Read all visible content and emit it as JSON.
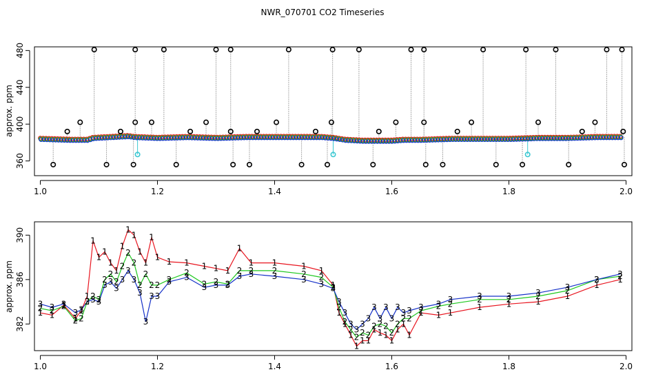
{
  "figure": {
    "title": "NWR_070701  CO2 Timeseries"
  },
  "colors": {
    "series_1": "#e8141e",
    "series_2": "#1ec81e",
    "series_3": "#1430c8",
    "spike": "#000000",
    "flag": "#3cc8d2",
    "connector": "#aaaaaa"
  },
  "chart_data": [
    {
      "type": "scatter",
      "panel": "top",
      "xlabel": "",
      "ylabel": "approx. ppm",
      "xlim": [
        0.99,
        2.01
      ],
      "ylim": [
        344,
        484
      ],
      "x_ticks": [
        1.0,
        1.2,
        1.4,
        1.6,
        1.8,
        2.0
      ],
      "x_tick_labels": [
        "1.0",
        "1.2",
        "1.4",
        "1.6",
        "1.8",
        "2.0"
      ],
      "y_ticks": [
        360,
        400,
        440,
        480
      ],
      "y_tick_labels": [
        "360",
        "400",
        "440",
        "480"
      ],
      "baseline": {
        "x": [
          1.0,
          1.05,
          1.08,
          1.09,
          1.12,
          1.15,
          1.16,
          1.2,
          1.25,
          1.3,
          1.35,
          1.4,
          1.45,
          1.48,
          1.5,
          1.52,
          1.55,
          1.58,
          1.6,
          1.62,
          1.65,
          1.7,
          1.75,
          1.8,
          1.85,
          1.9,
          1.95,
          1.99
        ],
        "values": [
          384,
          383,
          383,
          385,
          386,
          387,
          386,
          385,
          386,
          385,
          386,
          386,
          386,
          386,
          385,
          383,
          382,
          382,
          382,
          383,
          383,
          384,
          384,
          384,
          385,
          385,
          386,
          386
        ]
      },
      "spikes_high": {
        "x": [
          1.092,
          1.162,
          1.211,
          1.3,
          1.325,
          1.424,
          1.499,
          1.544,
          1.633,
          1.655,
          1.756,
          1.829,
          1.88,
          1.967,
          1.993
        ],
        "values": [
          481,
          481,
          481,
          481,
          481,
          481,
          481,
          481,
          481,
          481,
          481,
          481,
          481,
          481,
          481
        ]
      },
      "spikes_mid": {
        "x": [
          1.046,
          1.068,
          1.137,
          1.162,
          1.19,
          1.256,
          1.283,
          1.325,
          1.37,
          1.403,
          1.47,
          1.497,
          1.578,
          1.607,
          1.655,
          1.712,
          1.736,
          1.85,
          1.925,
          1.947,
          1.995
        ],
        "values": [
          392,
          402,
          392,
          402,
          402,
          392,
          402,
          392,
          392,
          402,
          392,
          402,
          392,
          402,
          402,
          392,
          402,
          402,
          392,
          402,
          392
        ]
      },
      "spikes_low": {
        "x": [
          1.022,
          1.113,
          1.159,
          1.232,
          1.329,
          1.357,
          1.446,
          1.49,
          1.568,
          1.658,
          1.687,
          1.778,
          1.823,
          1.902,
          1.997
        ],
        "values": [
          356,
          356,
          356,
          356,
          356,
          356,
          356,
          356,
          356,
          356,
          356,
          356,
          356,
          356,
          356
        ]
      },
      "flagged": {
        "x": [
          1.166,
          1.5,
          1.832
        ],
        "values": [
          367,
          367,
          367
        ]
      }
    },
    {
      "type": "line",
      "panel": "bottom",
      "xlabel": "",
      "ylabel": "approx. ppm",
      "xlim": [
        0.99,
        2.01
      ],
      "ylim": [
        379.6,
        391.2
      ],
      "x_ticks": [
        1.0,
        1.2,
        1.4,
        1.6,
        1.8,
        2.0
      ],
      "x_tick_labels": [
        "1.0",
        "1.2",
        "1.4",
        "1.6",
        "1.8",
        "2.0"
      ],
      "y_ticks": [
        382,
        386,
        390
      ],
      "y_tick_labels": [
        "382",
        "386",
        "390"
      ],
      "series": [
        {
          "marker": "1",
          "x": [
            1.0,
            1.02,
            1.04,
            1.06,
            1.07,
            1.08,
            1.09,
            1.1,
            1.11,
            1.12,
            1.13,
            1.14,
            1.15,
            1.16,
            1.17,
            1.18,
            1.19,
            1.2,
            1.22,
            1.25,
            1.28,
            1.3,
            1.32,
            1.34,
            1.36,
            1.4,
            1.45,
            1.48,
            1.5,
            1.51,
            1.52,
            1.53,
            1.54,
            1.55,
            1.56,
            1.57,
            1.58,
            1.59,
            1.6,
            1.61,
            1.62,
            1.63,
            1.65,
            1.68,
            1.7,
            1.75,
            1.8,
            1.85,
            1.9,
            1.95,
            1.99
          ],
          "values": [
            383.0,
            382.8,
            383.7,
            382.5,
            383.2,
            384.5,
            389.5,
            388.0,
            388.5,
            387.5,
            386.8,
            389.0,
            390.5,
            390.0,
            388.5,
            387.5,
            389.8,
            388.0,
            387.6,
            387.5,
            387.2,
            387.0,
            386.8,
            388.8,
            387.5,
            387.5,
            387.2,
            386.8,
            385.5,
            383.0,
            382.0,
            381.0,
            380.0,
            380.5,
            380.5,
            381.5,
            381.2,
            381.0,
            380.5,
            381.5,
            382.0,
            381.0,
            383.0,
            382.8,
            383.0,
            383.5,
            383.8,
            384.0,
            384.5,
            385.5,
            386.0
          ]
        },
        {
          "marker": "2",
          "x": [
            1.0,
            1.02,
            1.04,
            1.06,
            1.07,
            1.08,
            1.09,
            1.1,
            1.11,
            1.12,
            1.13,
            1.14,
            1.15,
            1.16,
            1.17,
            1.18,
            1.19,
            1.2,
            1.22,
            1.25,
            1.28,
            1.3,
            1.32,
            1.34,
            1.36,
            1.4,
            1.45,
            1.48,
            1.5,
            1.51,
            1.52,
            1.53,
            1.54,
            1.55,
            1.56,
            1.57,
            1.58,
            1.59,
            1.6,
            1.61,
            1.62,
            1.63,
            1.65,
            1.68,
            1.7,
            1.75,
            1.8,
            1.85,
            1.9,
            1.95,
            1.99
          ],
          "values": [
            383.4,
            383.2,
            383.6,
            382.3,
            382.5,
            384.0,
            384.5,
            384.2,
            386.0,
            386.5,
            385.8,
            387.2,
            388.4,
            387.5,
            385.5,
            386.5,
            385.5,
            385.5,
            386.0,
            386.6,
            385.6,
            385.8,
            385.6,
            386.8,
            386.8,
            386.8,
            386.5,
            386.2,
            385.3,
            383.5,
            382.2,
            381.5,
            380.8,
            381.2,
            381.0,
            381.8,
            382.0,
            381.8,
            381.2,
            382.0,
            382.5,
            382.5,
            383.2,
            383.6,
            383.8,
            384.2,
            384.2,
            384.5,
            385.0,
            386.0,
            386.3
          ]
        },
        {
          "marker": "3",
          "x": [
            1.0,
            1.02,
            1.04,
            1.06,
            1.07,
            1.08,
            1.09,
            1.1,
            1.11,
            1.12,
            1.13,
            1.14,
            1.15,
            1.16,
            1.17,
            1.18,
            1.19,
            1.2,
            1.22,
            1.25,
            1.28,
            1.3,
            1.32,
            1.34,
            1.36,
            1.4,
            1.45,
            1.48,
            1.5,
            1.51,
            1.52,
            1.53,
            1.54,
            1.55,
            1.56,
            1.57,
            1.58,
            1.59,
            1.6,
            1.61,
            1.62,
            1.63,
            1.65,
            1.68,
            1.7,
            1.75,
            1.8,
            1.85,
            1.9,
            1.95,
            1.99
          ],
          "values": [
            383.8,
            383.5,
            383.8,
            383.0,
            383.3,
            384.0,
            384.2,
            384.0,
            385.5,
            385.8,
            385.2,
            386.0,
            386.8,
            386.0,
            384.8,
            382.2,
            384.5,
            384.5,
            385.8,
            386.2,
            385.3,
            385.5,
            385.5,
            386.3,
            386.5,
            386.3,
            386.0,
            385.6,
            385.2,
            384.0,
            383.0,
            382.0,
            381.5,
            382.0,
            382.5,
            383.5,
            382.5,
            383.5,
            382.5,
            383.5,
            383.0,
            383.2,
            383.5,
            383.8,
            384.2,
            384.5,
            384.5,
            384.8,
            385.3,
            386.0,
            386.5
          ]
        }
      ]
    }
  ]
}
